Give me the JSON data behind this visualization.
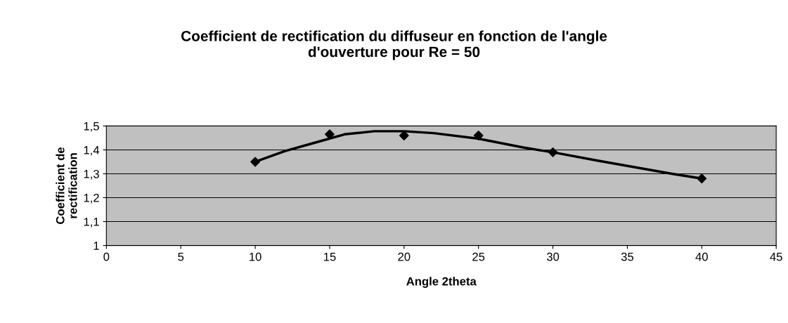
{
  "chart_data": {
    "type": "scatter",
    "title": "Coefficient de rectification du diffuseur en fonction de l'angle\nd'ouverture pour Re = 50",
    "xlabel": "Angle 2theta",
    "ylabel": "Coefficient de\nrectification",
    "series": [
      {
        "marker": "diamond",
        "color": "#000000",
        "x": [
          10,
          15,
          20,
          25,
          30,
          40
        ],
        "values": [
          1.35,
          1.465,
          1.46,
          1.46,
          1.39,
          1.28
        ]
      },
      {
        "type": "line",
        "marker": "none",
        "line_style": "solid",
        "color": "#000000",
        "x": [
          10,
          12,
          14,
          16,
          18,
          20,
          22,
          25,
          28,
          30,
          33,
          35,
          38,
          40
        ],
        "values": [
          1.35,
          1.395,
          1.43,
          1.465,
          1.478,
          1.478,
          1.47,
          1.447,
          1.41,
          1.39,
          1.355,
          1.333,
          1.3,
          1.28
        ]
      }
    ],
    "xlim": [
      0,
      45
    ],
    "xticks": [
      0,
      5,
      10,
      15,
      20,
      25,
      30,
      35,
      40,
      45
    ],
    "ylim": [
      1,
      1.5
    ],
    "yticks": [
      1,
      {
        "value": 1.1,
        "label": "1,1"
      },
      {
        "value": 1.2,
        "label": "1,2"
      },
      {
        "value": 1.3,
        "label": "1,3"
      },
      {
        "value": 1.4,
        "label": "1,4"
      },
      {
        "value": 1.5,
        "label": "1,5"
      }
    ],
    "grid": "y",
    "legend": false
  }
}
